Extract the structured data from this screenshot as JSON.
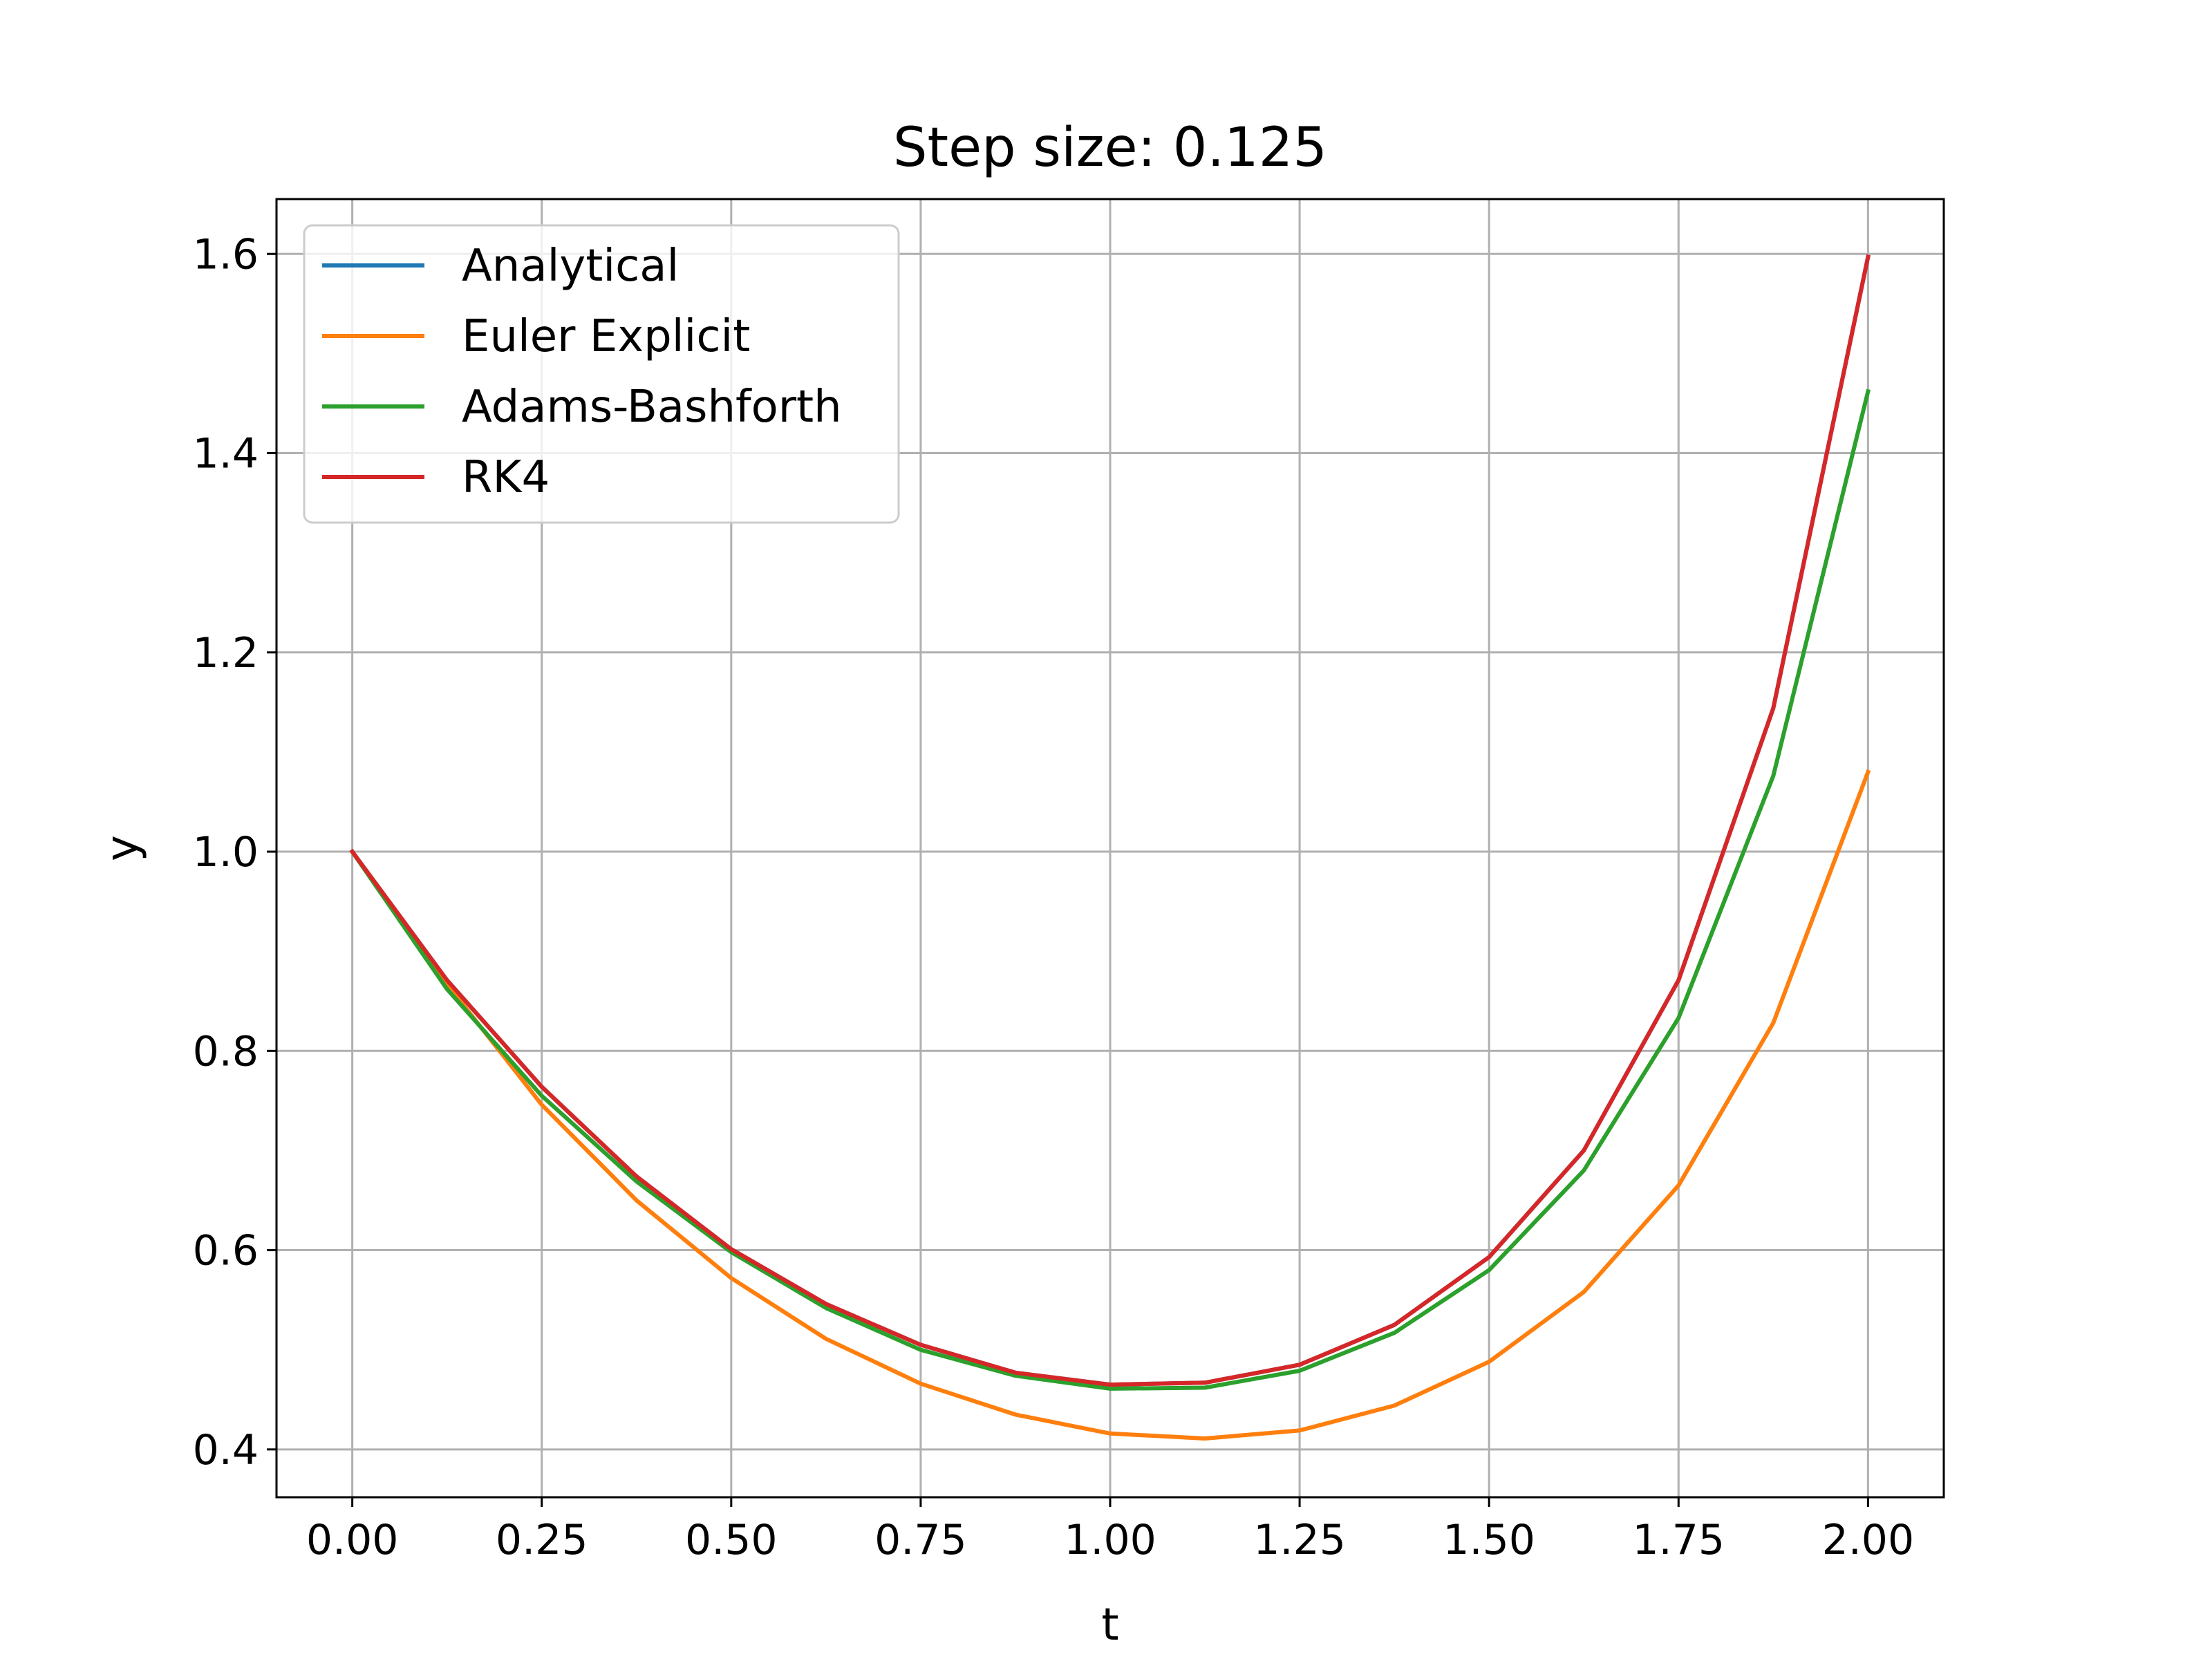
{
  "chart_data": {
    "type": "line",
    "title": "Step size: 0.125",
    "xlabel": "t",
    "ylabel": "y",
    "xlim": [
      -0.1,
      2.1
    ],
    "ylim": [
      0.352,
      1.655
    ],
    "grid": true,
    "legend_position": "top-left",
    "x_ticks": [
      "0.00",
      "0.25",
      "0.50",
      "0.75",
      "1.00",
      "1.25",
      "1.50",
      "1.75",
      "2.00"
    ],
    "y_ticks": [
      "0.4",
      "0.6",
      "0.8",
      "1.0",
      "1.2",
      "1.4",
      "1.6"
    ],
    "x": [
      0.0,
      0.125,
      0.25,
      0.375,
      0.5,
      0.625,
      0.75,
      0.875,
      1.0,
      1.125,
      1.25,
      1.375,
      1.5,
      1.625,
      1.75,
      1.875,
      2.0
    ],
    "series": [
      {
        "name": "Analytical",
        "color": "#1f77b4",
        "values": [
          1.0,
          0.871,
          0.764,
          0.674,
          0.601,
          0.546,
          0.505,
          0.477,
          0.465,
          0.467,
          0.485,
          0.525,
          0.593,
          0.7,
          0.871,
          1.144,
          1.597
        ]
      },
      {
        "name": "Euler Explicit",
        "color": "#ff7f0e",
        "values": [
          1.0,
          0.867,
          0.746,
          0.65,
          0.572,
          0.511,
          0.466,
          0.435,
          0.416,
          0.411,
          0.419,
          0.444,
          0.488,
          0.558,
          0.665,
          0.828,
          1.08
        ]
      },
      {
        "name": "Adams-Bashforth",
        "color": "#2ca02c",
        "values": [
          1.0,
          0.862,
          0.755,
          0.669,
          0.598,
          0.542,
          0.5,
          0.474,
          0.461,
          0.462,
          0.479,
          0.517,
          0.58,
          0.68,
          0.833,
          1.076,
          1.462
        ]
      },
      {
        "name": "RK4",
        "color": "#d62728",
        "values": [
          1.0,
          0.871,
          0.764,
          0.674,
          0.601,
          0.546,
          0.505,
          0.477,
          0.465,
          0.467,
          0.485,
          0.525,
          0.593,
          0.7,
          0.871,
          1.144,
          1.597
        ]
      }
    ]
  }
}
